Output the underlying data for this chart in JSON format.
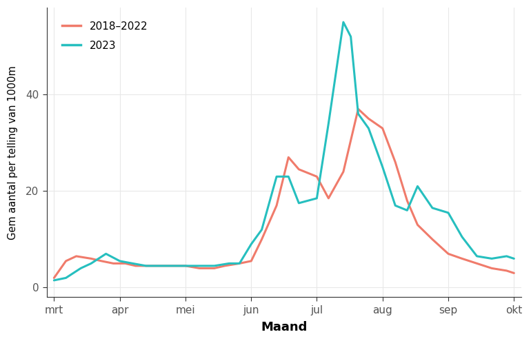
{
  "xlabel": "Maand",
  "ylabel": "Gem aantal per telling van 1000m",
  "xlim": [
    -0.5,
    31.5
  ],
  "ylim": [
    -2,
    58
  ],
  "yticks": [
    0,
    20,
    40
  ],
  "xtick_labels": [
    "mrt",
    "apr",
    "mei",
    "jun",
    "jul",
    "aug",
    "sep",
    "okt"
  ],
  "xtick_positions": [
    0,
    4.43,
    8.86,
    13.29,
    17.71,
    22.14,
    26.57,
    31.0
  ],
  "series": {
    "2018-2022": {
      "color": "#F07B6B",
      "linewidth": 2.2,
      "x": [
        0,
        0.8,
        1.5,
        2.5,
        3.2,
        4.0,
        4.8,
        5.5,
        6.5,
        7.3,
        8.0,
        8.86,
        9.8,
        10.8,
        11.5,
        12.5,
        13.29,
        14.0,
        15.0,
        15.8,
        16.5,
        17.71,
        18.5,
        19.5,
        20.5,
        21.2,
        22.14,
        23.0,
        23.8,
        24.5,
        25.5,
        26.57,
        27.5,
        28.5,
        29.5,
        30.5,
        31.0
      ],
      "y": [
        2.0,
        5.5,
        6.5,
        6.0,
        5.5,
        5.0,
        5.0,
        4.5,
        4.5,
        4.5,
        4.5,
        4.5,
        4.0,
        4.0,
        4.5,
        5.0,
        5.5,
        10.0,
        17.0,
        27.0,
        24.5,
        23.0,
        18.5,
        24.0,
        37.0,
        35.0,
        33.0,
        26.0,
        18.0,
        13.0,
        10.0,
        7.0,
        6.0,
        5.0,
        4.0,
        3.5,
        3.0
      ]
    },
    "2023": {
      "color": "#26BFBF",
      "linewidth": 2.2,
      "x": [
        0,
        0.8,
        1.8,
        2.5,
        3.5,
        4.43,
        5.3,
        6.2,
        7.0,
        7.8,
        8.86,
        9.8,
        10.8,
        11.8,
        12.5,
        13.29,
        14.0,
        15.0,
        15.8,
        16.5,
        17.71,
        18.5,
        19.5,
        20.0,
        20.5,
        21.2,
        22.14,
        23.0,
        23.8,
        24.5,
        25.5,
        26.57,
        27.5,
        28.5,
        29.5,
        30.5,
        31.0
      ],
      "y": [
        1.5,
        2.0,
        4.0,
        5.0,
        7.0,
        5.5,
        5.0,
        4.5,
        4.5,
        4.5,
        4.5,
        4.5,
        4.5,
        5.0,
        5.0,
        9.0,
        12.0,
        23.0,
        23.0,
        17.5,
        18.5,
        34.0,
        55.0,
        52.0,
        36.0,
        33.0,
        25.0,
        17.0,
        16.0,
        21.0,
        16.5,
        15.5,
        10.5,
        6.5,
        6.0,
        6.5,
        6.0
      ]
    }
  },
  "legend_labels": [
    "2018-2022",
    "2023"
  ],
  "background_color": "#FFFFFF",
  "grid_color": "#E8E8E8",
  "panel_background": "#FFFFFF",
  "axis_color": "#333333"
}
